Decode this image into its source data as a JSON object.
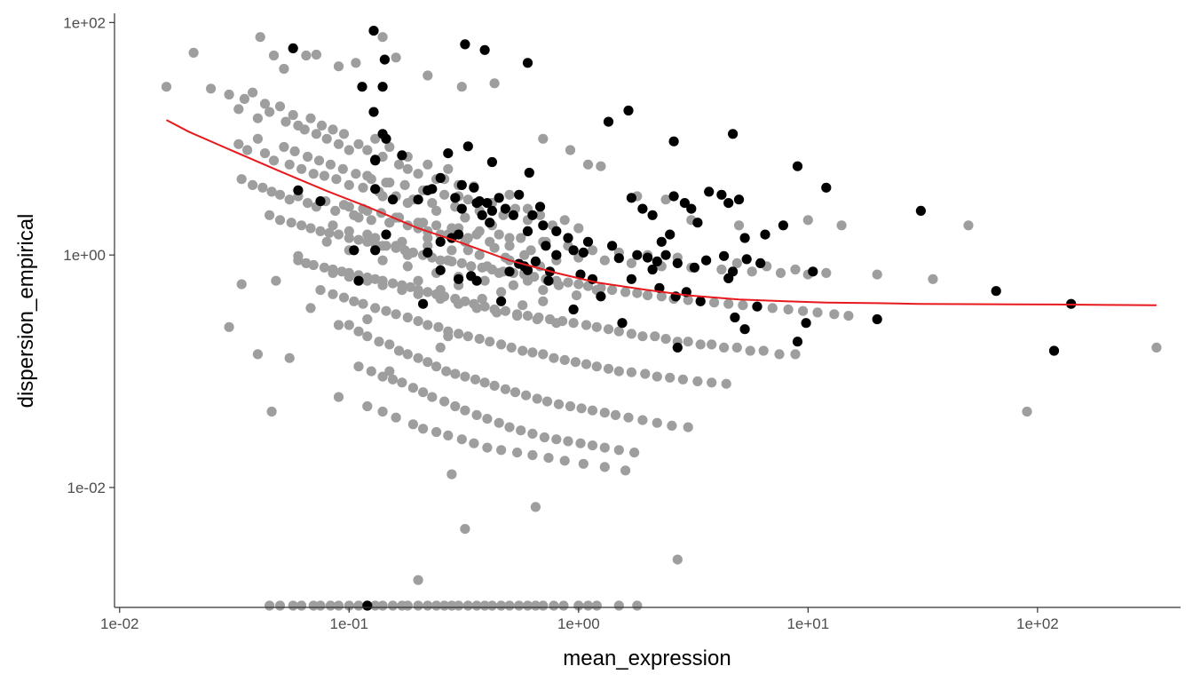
{
  "chart_data": {
    "type": "scatter",
    "title": "",
    "xlabel": "mean_expression",
    "ylabel": "dispersion_empirical",
    "x_scale": "log10",
    "y_scale": "log10",
    "xlim": [
      0.0095,
      420
    ],
    "ylim": [
      0.00093,
      120
    ],
    "grid": false,
    "legend": "none",
    "x_ticks": [
      {
        "value": 0.01,
        "label": "1e-02"
      },
      {
        "value": 0.1,
        "label": "1e-01"
      },
      {
        "value": 1,
        "label": "1e+00"
      },
      {
        "value": 10,
        "label": "1e+01"
      },
      {
        "value": 100,
        "label": "1e+02"
      }
    ],
    "y_ticks": [
      {
        "value": 0.01,
        "label": "1e-02"
      },
      {
        "value": 1,
        "label": "1e+00"
      },
      {
        "value": 100,
        "label": "1e+02"
      }
    ],
    "colors": {
      "background_points": "#9e9e9e",
      "highlighted_points": "#000000",
      "fit_line": "#e8191c",
      "axis": "#333333"
    },
    "fit_curve": {
      "x": [
        0.016,
        0.02,
        0.03,
        0.05,
        0.08,
        0.12,
        0.2,
        0.3,
        0.5,
        0.8,
        1.2,
        2,
        3,
        5,
        8,
        12,
        20,
        30,
        50,
        80,
        120,
        200,
        330
      ],
      "y": [
        14.5,
        11.5,
        8.1,
        5.25,
        3.55,
        2.6,
        1.7,
        1.3,
        0.9,
        0.7,
        0.58,
        0.5,
        0.45,
        0.415,
        0.4,
        0.39,
        0.385,
        0.38,
        0.378,
        0.376,
        0.375,
        0.372,
        0.37
      ]
    },
    "highlighted_series": {
      "x": [
        0.057,
        0.128,
        0.143,
        0.114,
        0.14,
        0.128,
        0.14,
        0.145,
        0.13,
        0.32,
        0.39,
        0.6,
        1.65,
        1.35,
        2.6,
        4.7,
        9.0,
        12.0,
        31.0,
        0.33,
        0.42,
        0.61,
        0.13,
        0.17,
        0.22,
        0.25,
        0.23,
        0.27,
        0.31,
        0.35,
        0.37,
        0.4,
        0.42,
        0.45,
        0.48,
        0.52,
        0.55,
        0.63,
        0.68,
        0.06,
        0.075,
        0.13,
        0.155,
        0.2,
        0.29,
        0.31,
        0.36,
        0.38,
        0.41,
        0.6,
        0.7,
        0.8,
        0.9,
        1.1,
        1.4,
        1.7,
        1.9,
        2.1,
        2.3,
        2.5,
        2.6,
        2.9,
        3.1,
        3.3,
        3.7,
        4.2,
        4.5,
        5.0,
        5.3,
        6.5,
        7.8,
        0.105,
        0.13,
        0.145,
        0.22,
        0.25,
        0.28,
        0.3,
        0.55,
        0.6,
        0.65,
        0.72,
        0.8,
        0.95,
        1.05,
        1.15,
        1.5,
        1.8,
        2.0,
        2.2,
        2.4,
        2.7,
        3.2,
        3.6,
        4.3,
        4.7,
        5.4,
        6.2,
        10.5,
        0.21,
        0.25,
        0.36,
        0.46,
        0.74,
        0.95,
        1.25,
        1.55,
        2.25,
        2.65,
        3.4,
        4.8,
        5.3,
        6.0,
        9.0,
        9.8,
        20.0,
        66.0,
        118.0,
        140.0,
        2.7,
        0.11,
        0.3,
        0.34,
        0.5,
        0.58,
        0.75,
        1.02,
        1.7,
        2.1,
        2.95,
        4.5,
        0.12
      ],
      "y": [
        60,
        85,
        48,
        28,
        28,
        17,
        11,
        10,
        6.5,
        65,
        58,
        45,
        17.5,
        14,
        9.5,
        11,
        5.8,
        3.8,
        2.4,
        8.6,
        6.3,
        5.1,
        6.6,
        7.2,
        3.6,
        4.6,
        3.7,
        7.5,
        4.0,
        3.8,
        2.9,
        2.8,
        2.4,
        3.1,
        2.5,
        2.2,
        3.3,
        2.2,
        2.6,
        3.6,
        2.9,
        3.7,
        3.0,
        3.0,
        3.1,
        2.5,
        2.8,
        2.2,
        1.9,
        1.6,
        1.8,
        1.6,
        1.4,
        1.3,
        1.2,
        3.1,
        2.5,
        2.2,
        1.3,
        1.5,
        3.2,
        2.8,
        2.5,
        1.9,
        3.5,
        3.3,
        2.8,
        3.0,
        1.4,
        1.5,
        1.8,
        1.1,
        1.1,
        1.5,
        1.05,
        1.3,
        1.4,
        1.5,
        0.84,
        0.74,
        0.88,
        1.2,
        1.0,
        1.1,
        1.05,
        0.62,
        0.94,
        1.0,
        0.95,
        0.88,
        1.0,
        0.85,
        0.78,
        0.9,
        0.98,
        0.72,
        0.92,
        0.85,
        0.72,
        0.38,
        0.74,
        0.6,
        0.4,
        0.6,
        0.34,
        0.44,
        0.26,
        0.52,
        0.44,
        0.4,
        0.29,
        0.23,
        0.36,
        0.18,
        0.26,
        0.28,
        0.49,
        0.15,
        0.38,
        0.16,
        0.6,
        0.62,
        0.66,
        0.72,
        0.8,
        0.72,
        0.68,
        0.62,
        0.75,
        0.48,
        0.63,
        0.0009
      ]
    },
    "background_series": {
      "x": [
        0.016,
        0.021,
        0.025,
        0.03,
        0.041,
        0.047,
        0.052,
        0.065,
        0.072,
        0.09,
        0.107,
        0.14,
        0.16,
        0.22,
        0.31,
        0.43,
        0.7,
        0.92,
        1.1,
        1.25,
        1.8,
        2.4,
        3.1,
        5.0,
        10.0,
        14.0,
        20.0,
        35.0,
        50.0,
        90.0,
        330.0,
        0.03,
        0.034,
        0.04,
        0.046,
        0.048,
        0.055,
        0.06,
        0.068,
        0.09,
        0.12,
        0.15,
        0.25,
        0.27,
        0.033,
        0.035,
        0.038,
        0.04,
        0.043,
        0.045,
        0.05,
        0.053,
        0.057,
        0.06,
        0.064,
        0.068,
        0.072,
        0.076,
        0.08,
        0.085,
        0.09,
        0.095,
        0.1,
        0.11,
        0.12,
        0.13,
        0.14,
        0.15,
        0.165,
        0.18,
        0.2,
        0.22,
        0.24,
        0.27,
        0.3,
        0.033,
        0.036,
        0.04,
        0.043,
        0.047,
        0.052,
        0.055,
        0.058,
        0.062,
        0.066,
        0.07,
        0.074,
        0.078,
        0.083,
        0.088,
        0.094,
        0.1,
        0.107,
        0.115,
        0.125,
        0.135,
        0.145,
        0.16,
        0.175,
        0.19,
        0.21,
        0.23,
        0.26,
        0.29,
        0.33,
        0.37,
        0.42,
        0.47,
        0.53,
        0.6,
        0.68,
        0.77,
        0.87,
        1.0,
        0.034,
        0.038,
        0.042,
        0.046,
        0.05,
        0.055,
        0.06,
        0.066,
        0.072,
        0.079,
        0.087,
        0.095,
        0.105,
        0.115,
        0.125,
        0.138,
        0.15,
        0.165,
        0.18,
        0.2,
        0.22,
        0.24,
        0.27,
        0.3,
        0.33,
        0.37,
        0.41,
        0.45,
        0.5,
        0.56,
        0.62,
        0.7,
        0.8,
        0.9,
        1.0,
        1.15,
        1.3,
        1.5,
        1.7,
        2.0,
        2.3,
        2.7,
        3.1,
        3.6,
        4.2,
        4.9,
        5.7,
        6.6,
        7.6,
        8.8,
        10.0,
        12.0,
        0.045,
        0.05,
        0.056,
        0.062,
        0.068,
        0.075,
        0.082,
        0.09,
        0.1,
        0.11,
        0.12,
        0.13,
        0.145,
        0.16,
        0.175,
        0.19,
        0.21,
        0.23,
        0.25,
        0.28,
        0.31,
        0.34,
        0.38,
        0.42,
        0.47,
        0.52,
        0.58,
        0.64,
        0.72,
        0.8,
        0.9,
        1.0,
        1.1,
        1.25,
        1.4,
        1.6,
        1.8,
        2.0,
        2.3,
        2.6,
        3.0,
        3.4,
        3.9,
        4.5,
        5.2,
        6.0,
        7.0,
        8.2,
        9.5,
        11.0,
        13.0,
        15.0,
        0.06,
        0.065,
        0.07,
        0.078,
        0.085,
        0.093,
        0.1,
        0.11,
        0.12,
        0.13,
        0.14,
        0.155,
        0.17,
        0.185,
        0.2,
        0.22,
        0.24,
        0.26,
        0.29,
        0.32,
        0.35,
        0.39,
        0.43,
        0.48,
        0.54,
        0.6,
        0.67,
        0.75,
        0.85,
        0.95,
        1.08,
        1.2,
        1.35,
        1.5,
        1.7,
        1.9,
        2.15,
        2.4,
        2.7,
        3.0,
        3.4,
        3.8,
        4.3,
        4.9,
        5.6,
        6.4,
        7.5,
        8.8,
        0.075,
        0.085,
        0.095,
        0.105,
        0.115,
        0.13,
        0.145,
        0.16,
        0.18,
        0.2,
        0.22,
        0.245,
        0.27,
        0.3,
        0.33,
        0.37,
        0.41,
        0.46,
        0.51,
        0.57,
        0.63,
        0.7,
        0.78,
        0.87,
        0.97,
        1.08,
        1.2,
        1.35,
        1.5,
        1.7,
        1.95,
        2.2,
        2.5,
        2.85,
        3.3,
        3.8,
        4.4,
        0.1,
        0.11,
        0.12,
        0.135,
        0.15,
        0.165,
        0.18,
        0.2,
        0.22,
        0.24,
        0.265,
        0.29,
        0.32,
        0.355,
        0.39,
        0.43,
        0.48,
        0.53,
        0.59,
        0.66,
        0.73,
        0.82,
        0.92,
        1.03,
        1.15,
        1.3,
        1.45,
        1.65,
        1.9,
        2.2,
        2.55,
        3.0,
        0.11,
        0.125,
        0.14,
        0.155,
        0.17,
        0.19,
        0.21,
        0.23,
        0.26,
        0.29,
        0.32,
        0.36,
        0.4,
        0.45,
        0.5,
        0.56,
        0.63,
        0.71,
        0.8,
        0.9,
        1.02,
        1.15,
        1.3,
        1.5,
        1.75,
        0.09,
        0.12,
        0.14,
        0.16,
        0.19,
        0.21,
        0.24,
        0.27,
        0.31,
        0.35,
        0.4,
        0.46,
        0.54,
        0.63,
        0.74,
        0.87,
        1.05,
        1.3,
        1.6,
        0.08,
        0.1,
        0.12,
        0.14,
        0.16,
        0.18,
        0.21,
        0.24,
        0.27,
        0.3,
        0.34,
        0.39,
        0.45,
        0.52,
        0.6,
        0.7,
        0.82,
        0.98,
        1.2,
        0.085,
        0.1,
        0.11,
        0.13,
        0.15,
        0.17,
        0.2,
        0.22,
        0.25,
        0.28,
        0.32,
        0.37,
        0.43,
        0.5,
        0.58,
        0.68,
        0.8,
        0.1,
        0.12,
        0.14,
        0.16,
        0.18,
        0.21,
        0.24,
        0.28,
        0.32,
        0.36,
        0.42,
        0.5,
        0.6,
        0.72,
        0.12,
        0.15,
        0.18,
        0.22,
        0.26,
        0.3,
        0.35,
        0.42,
        0.5,
        0.6,
        0.14,
        0.18,
        0.22,
        0.27,
        0.33,
        0.4,
        0.48,
        0.58,
        0.2,
        0.25,
        0.3,
        0.38,
        0.46,
        0.57,
        0.7,
        0.085,
        0.1,
        0.12,
        0.14,
        0.17,
        0.2,
        0.25,
        0.3,
        0.36,
        0.44,
        0.54,
        0.66,
        0.8,
        0.2,
        0.28,
        0.32,
        0.65,
        2.7,
        0.045,
        0.05,
        0.057,
        0.062,
        0.07,
        0.075,
        0.083,
        0.09,
        0.1,
        0.11,
        0.12,
        0.13,
        0.14,
        0.155,
        0.17,
        0.18,
        0.2,
        0.22,
        0.24,
        0.26,
        0.28,
        0.3,
        0.33,
        0.36,
        0.39,
        0.42,
        0.46,
        0.5,
        0.55,
        0.6,
        0.65,
        0.7,
        0.78,
        0.86,
        1.0,
        1.1,
        1.2,
        1.5,
        1.8
      ],
      "y": [
        28,
        55,
        27,
        24,
        75,
        52,
        40,
        52,
        53,
        42,
        45,
        75,
        50,
        35,
        28,
        30,
        10,
        8,
        6,
        5.8,
        3.2,
        3.0,
        2.0,
        1.8,
        2.0,
        1.8,
        0.68,
        0.62,
        1.8,
        0.045,
        0.16,
        0.24,
        0.56,
        0.14,
        0.045,
        0.6,
        0.13,
        0.98,
        0.35,
        0.25,
        0.28,
        0.1,
        0.16,
        0.2,
        18,
        22,
        25,
        15,
        20,
        17,
        19,
        14,
        16,
        13,
        12,
        15,
        11,
        13,
        10,
        12,
        9,
        11,
        8,
        9,
        8,
        10,
        7,
        8.5,
        6,
        7,
        5,
        6,
        4.5,
        5.5,
        4,
        9,
        8,
        10,
        7.5,
        6.5,
        8.5,
        6,
        7.8,
        5.5,
        7,
        5,
        6.5,
        4.8,
        6,
        4.5,
        5.5,
        4,
        5,
        3.8,
        4.5,
        3.5,
        4.2,
        3.2,
        4,
        3,
        3.6,
        2.8,
        3.3,
        2.6,
        3,
        2.4,
        2.8,
        2.2,
        2.5,
        2,
        2.2,
        1.8,
        2,
        1.7,
        4.5,
        4,
        3.8,
        3.5,
        3.3,
        3,
        3.2,
        2.8,
        2.6,
        2.9,
        2.4,
        2.7,
        2.2,
        2.5,
        2,
        2.3,
        1.9,
        2.1,
        1.8,
        1.9,
        1.6,
        1.8,
        1.5,
        1.7,
        1.4,
        1.6,
        1.3,
        1.5,
        1.2,
        1.4,
        1.1,
        1.3,
        1,
        1.2,
        0.95,
        1.1,
        0.9,
        1.05,
        0.85,
        1,
        0.8,
        0.95,
        0.78,
        0.9,
        0.75,
        0.85,
        0.72,
        0.8,
        0.7,
        0.75,
        0.68,
        0.7,
        2.2,
        2,
        1.9,
        1.8,
        1.7,
        1.6,
        1.55,
        1.5,
        1.4,
        1.35,
        1.3,
        1.25,
        1.2,
        1.15,
        1.1,
        1.05,
        1,
        0.95,
        0.9,
        0.88,
        0.85,
        0.8,
        0.78,
        0.75,
        0.72,
        0.7,
        0.68,
        0.65,
        0.62,
        0.6,
        0.58,
        0.56,
        0.54,
        0.52,
        0.5,
        0.48,
        0.47,
        0.45,
        0.44,
        0.42,
        0.41,
        0.4,
        0.39,
        0.38,
        0.37,
        0.36,
        0.35,
        0.34,
        0.33,
        0.32,
        0.31,
        0.3,
        0.9,
        0.85,
        0.82,
        0.78,
        0.75,
        0.72,
        0.7,
        0.67,
        0.64,
        0.62,
        0.6,
        0.57,
        0.55,
        0.53,
        0.5,
        0.48,
        0.46,
        0.44,
        0.42,
        0.4,
        0.38,
        0.36,
        0.34,
        0.33,
        0.31,
        0.3,
        0.29,
        0.28,
        0.27,
        0.26,
        0.25,
        0.24,
        0.23,
        0.22,
        0.21,
        0.2,
        0.2,
        0.19,
        0.18,
        0.18,
        0.17,
        0.17,
        0.16,
        0.16,
        0.15,
        0.15,
        0.14,
        0.14,
        0.5,
        0.46,
        0.43,
        0.4,
        0.38,
        0.35,
        0.33,
        0.31,
        0.29,
        0.27,
        0.25,
        0.24,
        0.22,
        0.21,
        0.2,
        0.19,
        0.18,
        0.17,
        0.16,
        0.15,
        0.145,
        0.14,
        0.13,
        0.125,
        0.12,
        0.115,
        0.11,
        0.105,
        0.1,
        0.098,
        0.095,
        0.09,
        0.088,
        0.085,
        0.082,
        0.08,
        0.078,
        0.25,
        0.22,
        0.2,
        0.18,
        0.17,
        0.15,
        0.14,
        0.13,
        0.12,
        0.11,
        0.1,
        0.095,
        0.09,
        0.085,
        0.08,
        0.075,
        0.07,
        0.066,
        0.062,
        0.058,
        0.055,
        0.052,
        0.05,
        0.048,
        0.046,
        0.044,
        0.042,
        0.04,
        0.038,
        0.036,
        0.034,
        0.033,
        0.11,
        0.1,
        0.09,
        0.085,
        0.08,
        0.072,
        0.066,
        0.06,
        0.055,
        0.05,
        0.046,
        0.042,
        0.039,
        0.036,
        0.033,
        0.031,
        0.029,
        0.027,
        0.026,
        0.025,
        0.024,
        0.023,
        0.022,
        0.021,
        0.02,
        0.06,
        0.05,
        0.045,
        0.04,
        0.035,
        0.032,
        0.03,
        0.028,
        0.026,
        0.024,
        0.022,
        0.021,
        0.02,
        0.019,
        0.018,
        0.017,
        0.016,
        0.015,
        0.014,
        1.3,
        1.1,
        1.5,
        0.9,
        1.2,
        0.8,
        1.0,
        0.7,
        0.9,
        0.65,
        0.8,
        0.6,
        0.7,
        0.55,
        0.6,
        0.5,
        0.55,
        0.45,
        0.5,
        1.8,
        1.6,
        2.1,
        1.4,
        1.9,
        1.3,
        1.7,
        1.2,
        1.5,
        1.1,
        1.3,
        1.0,
        1.15,
        0.9,
        1.0,
        0.8,
        0.9,
        2.6,
        2.4,
        3.2,
        2.1,
        2.8,
        1.9,
        2.4,
        1.7,
        2.1,
        1.5,
        1.8,
        1.4,
        1.6,
        1.3,
        4.8,
        4.2,
        5.5,
        3.6,
        4.5,
        3.2,
        3.9,
        2.8,
        3.3,
        2.5,
        1.2,
        1.0,
        1.4,
        0.9,
        1.1,
        0.8,
        0.95,
        0.7,
        0.6,
        0.5,
        0.55,
        0.42,
        0.48,
        0.37,
        0.4,
        0.7,
        0.65,
        0.6,
        0.55,
        0.5,
        0.46,
        0.42,
        0.38,
        0.35,
        0.32,
        0.3,
        0.28,
        0.26,
        0.0016,
        0.013,
        0.0044,
        0.0068,
        0.0024,
        0.00095,
        0.00095,
        0.00095,
        0.00095,
        0.00095,
        0.00095,
        0.00095,
        0.00095,
        0.00095,
        0.00095,
        0.00095,
        0.00095,
        0.00095,
        0.00095,
        0.00095,
        0.00095,
        0.00095,
        0.00095,
        0.00095,
        0.00095,
        0.00095,
        0.00095,
        0.00095,
        0.00095,
        0.00095,
        0.00095,
        0.00095,
        0.00095,
        0.00095,
        0.00095,
        0.00095,
        0.00095,
        0.00095,
        0.00095,
        0.00095,
        0.00095,
        0.00095,
        0.00095,
        0.00095
      ]
    }
  }
}
